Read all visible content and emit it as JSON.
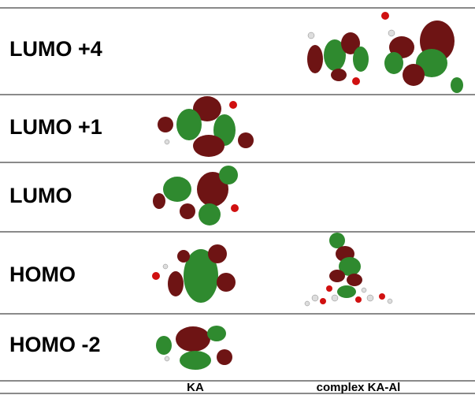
{
  "rows": [
    {
      "label": "LUMO +4"
    },
    {
      "label": "LUMO +1"
    },
    {
      "label": "LUMO"
    },
    {
      "label": "HOMO"
    },
    {
      "label": "HOMO -2"
    }
  ],
  "columns": [
    "KA",
    "complex KA-Al"
  ]
}
